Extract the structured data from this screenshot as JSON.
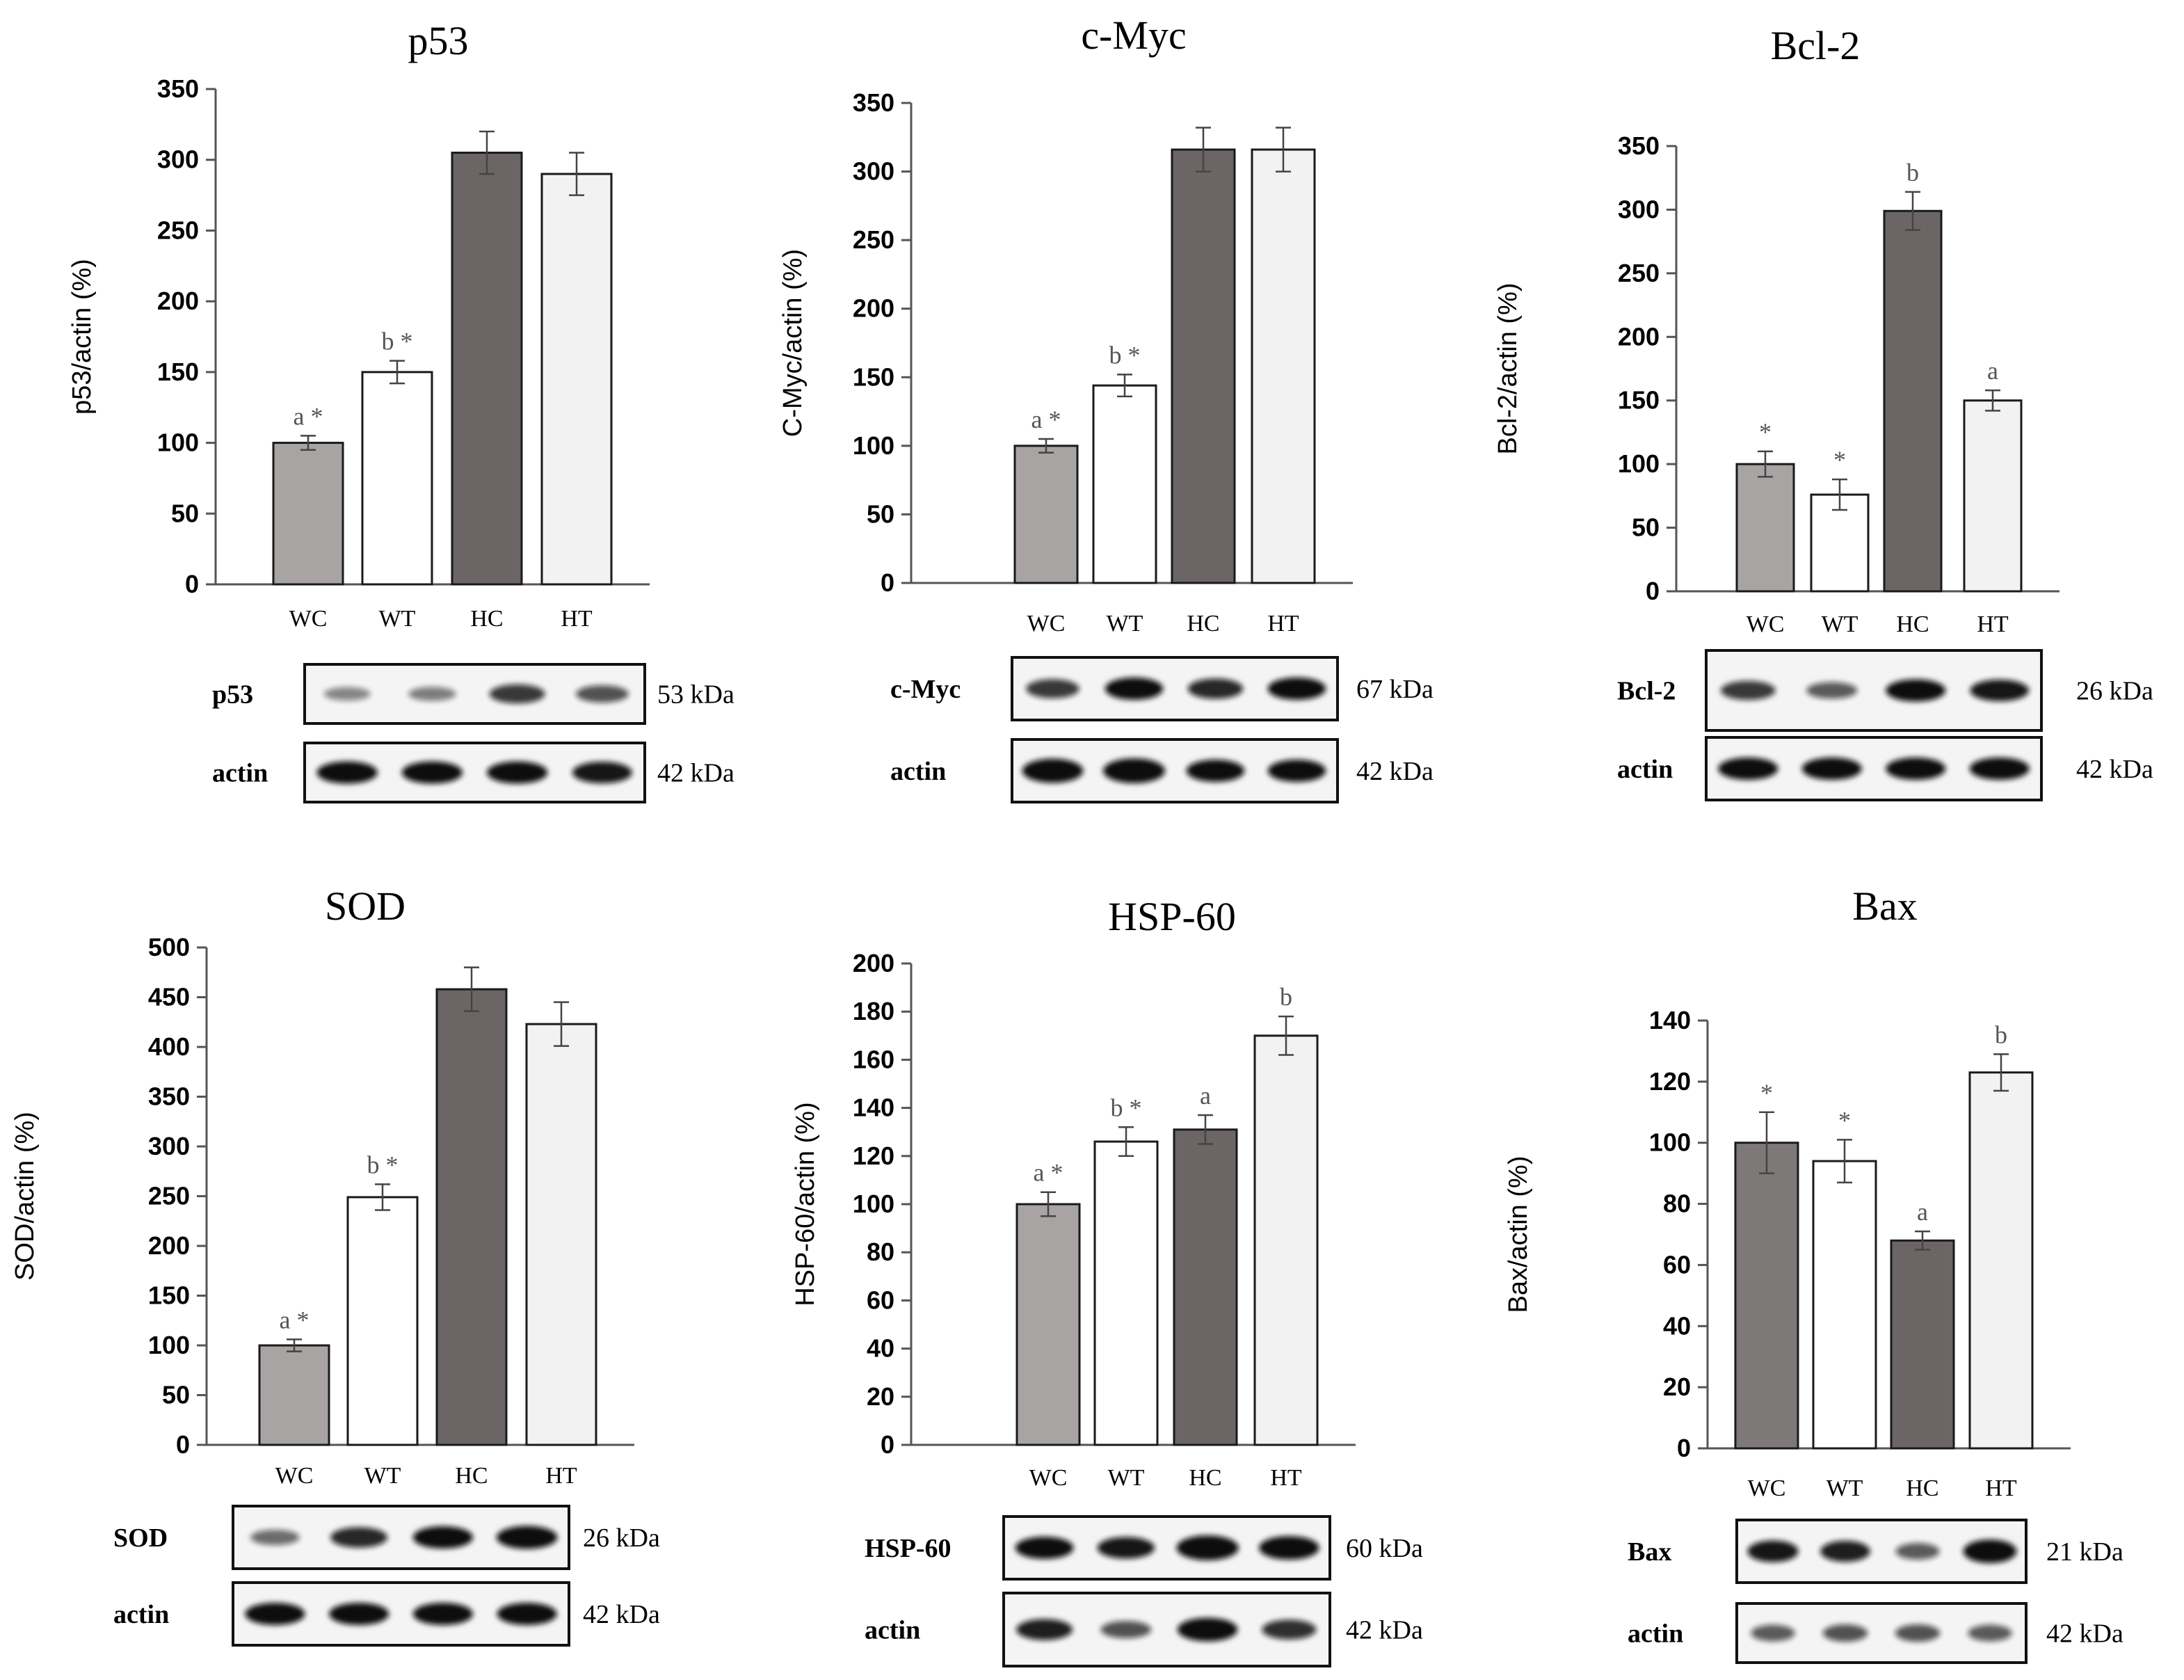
{
  "colors": {
    "WC": "#a8a4a3",
    "WT": "#ffffff",
    "HC": "#6b6665",
    "HT": "#f2f2f2",
    "Bax_WC": "#7d7978",
    "annotation": "#555555"
  },
  "chart_data": [
    {
      "type": "bar",
      "title": "p53",
      "ylabel": "p53/actin (%)",
      "xlabel": "",
      "ylim": [
        0,
        350
      ],
      "yticks": [
        0,
        50,
        100,
        150,
        200,
        250,
        300,
        350
      ],
      "categories": [
        "WC",
        "WT",
        "HC",
        "HT"
      ],
      "values": [
        100,
        150,
        305,
        290
      ],
      "errors": [
        5,
        8,
        15,
        15
      ],
      "annotations": [
        "a *",
        "b *",
        "",
        ""
      ],
      "blot": {
        "protein_label": "p53",
        "protein_kda": "53 kDa",
        "actin_label": "actin",
        "actin_kda": "42 kDa"
      }
    },
    {
      "type": "bar",
      "title": "c-Myc",
      "ylabel": "C-Myc/actin (%)",
      "xlabel": "",
      "ylim": [
        0,
        350
      ],
      "yticks": [
        0,
        50,
        100,
        150,
        200,
        250,
        300,
        350
      ],
      "categories": [
        "WC",
        "WT",
        "HC",
        "HT"
      ],
      "values": [
        100,
        144,
        316,
        316
      ],
      "errors": [
        5,
        8,
        16,
        16
      ],
      "annotations": [
        "a *",
        "b *",
        "",
        ""
      ],
      "blot": {
        "protein_label": "c-Myc",
        "protein_kda": "67 kDa",
        "actin_label": "actin",
        "actin_kda": "42 kDa"
      }
    },
    {
      "type": "bar",
      "title": "Bcl-2",
      "ylabel": "Bcl-2/actin (%)",
      "xlabel": "",
      "ylim": [
        0,
        350
      ],
      "yticks": [
        0,
        50,
        100,
        150,
        200,
        250,
        300,
        350
      ],
      "categories": [
        "WC",
        "WT",
        "HC",
        "HT"
      ],
      "values": [
        100,
        76,
        299,
        150
      ],
      "errors": [
        10,
        12,
        15,
        8
      ],
      "annotations": [
        "*",
        "*",
        "b",
        "a"
      ],
      "blot": {
        "protein_label": "Bcl-2",
        "protein_kda": "26 kDa",
        "actin_label": "actin",
        "actin_kda": "42 kDa"
      }
    },
    {
      "type": "bar",
      "title": "SOD",
      "ylabel": "SOD/actin (%)",
      "xlabel": "",
      "ylim": [
        0,
        500
      ],
      "yticks": [
        0,
        50,
        100,
        150,
        200,
        250,
        300,
        350,
        400,
        450,
        500
      ],
      "categories": [
        "WC",
        "WT",
        "HC",
        "HT"
      ],
      "values": [
        100,
        249,
        458,
        423
      ],
      "errors": [
        6,
        13,
        22,
        22
      ],
      "annotations": [
        "a *",
        "b *",
        "",
        ""
      ],
      "blot": {
        "protein_label": "SOD",
        "protein_kda": "26 kDa",
        "actin_label": "actin",
        "actin_kda": "42 kDa"
      }
    },
    {
      "type": "bar",
      "title": "HSP-60",
      "ylabel": "HSP-60/actin (%)",
      "xlabel": "",
      "ylim": [
        0,
        200
      ],
      "yticks": [
        0,
        20,
        40,
        60,
        80,
        100,
        120,
        140,
        160,
        180,
        200
      ],
      "categories": [
        "WC",
        "WT",
        "HC",
        "HT"
      ],
      "values": [
        100,
        126,
        131,
        170
      ],
      "errors": [
        5,
        6,
        6,
        8
      ],
      "annotations": [
        "a *",
        "b *",
        "a",
        "b"
      ],
      "blot": {
        "protein_label": "HSP-60",
        "protein_kda": "60 kDa",
        "actin_label": "actin",
        "actin_kda": "42 kDa"
      }
    },
    {
      "type": "bar",
      "title": "Bax",
      "ylabel": "Bax/actin (%)",
      "xlabel": "",
      "ylim": [
        0,
        140
      ],
      "yticks": [
        0,
        20,
        40,
        60,
        80,
        100,
        120,
        140
      ],
      "categories": [
        "WC",
        "WT",
        "HC",
        "HT"
      ],
      "values": [
        100,
        94,
        68,
        123
      ],
      "errors": [
        10,
        7,
        3,
        6
      ],
      "annotations": [
        "*",
        "*",
        "a",
        "b"
      ],
      "blot": {
        "protein_label": "Bax",
        "protein_kda": "21 kDa",
        "actin_label": "actin",
        "actin_kda": "42 kDa"
      }
    }
  ]
}
